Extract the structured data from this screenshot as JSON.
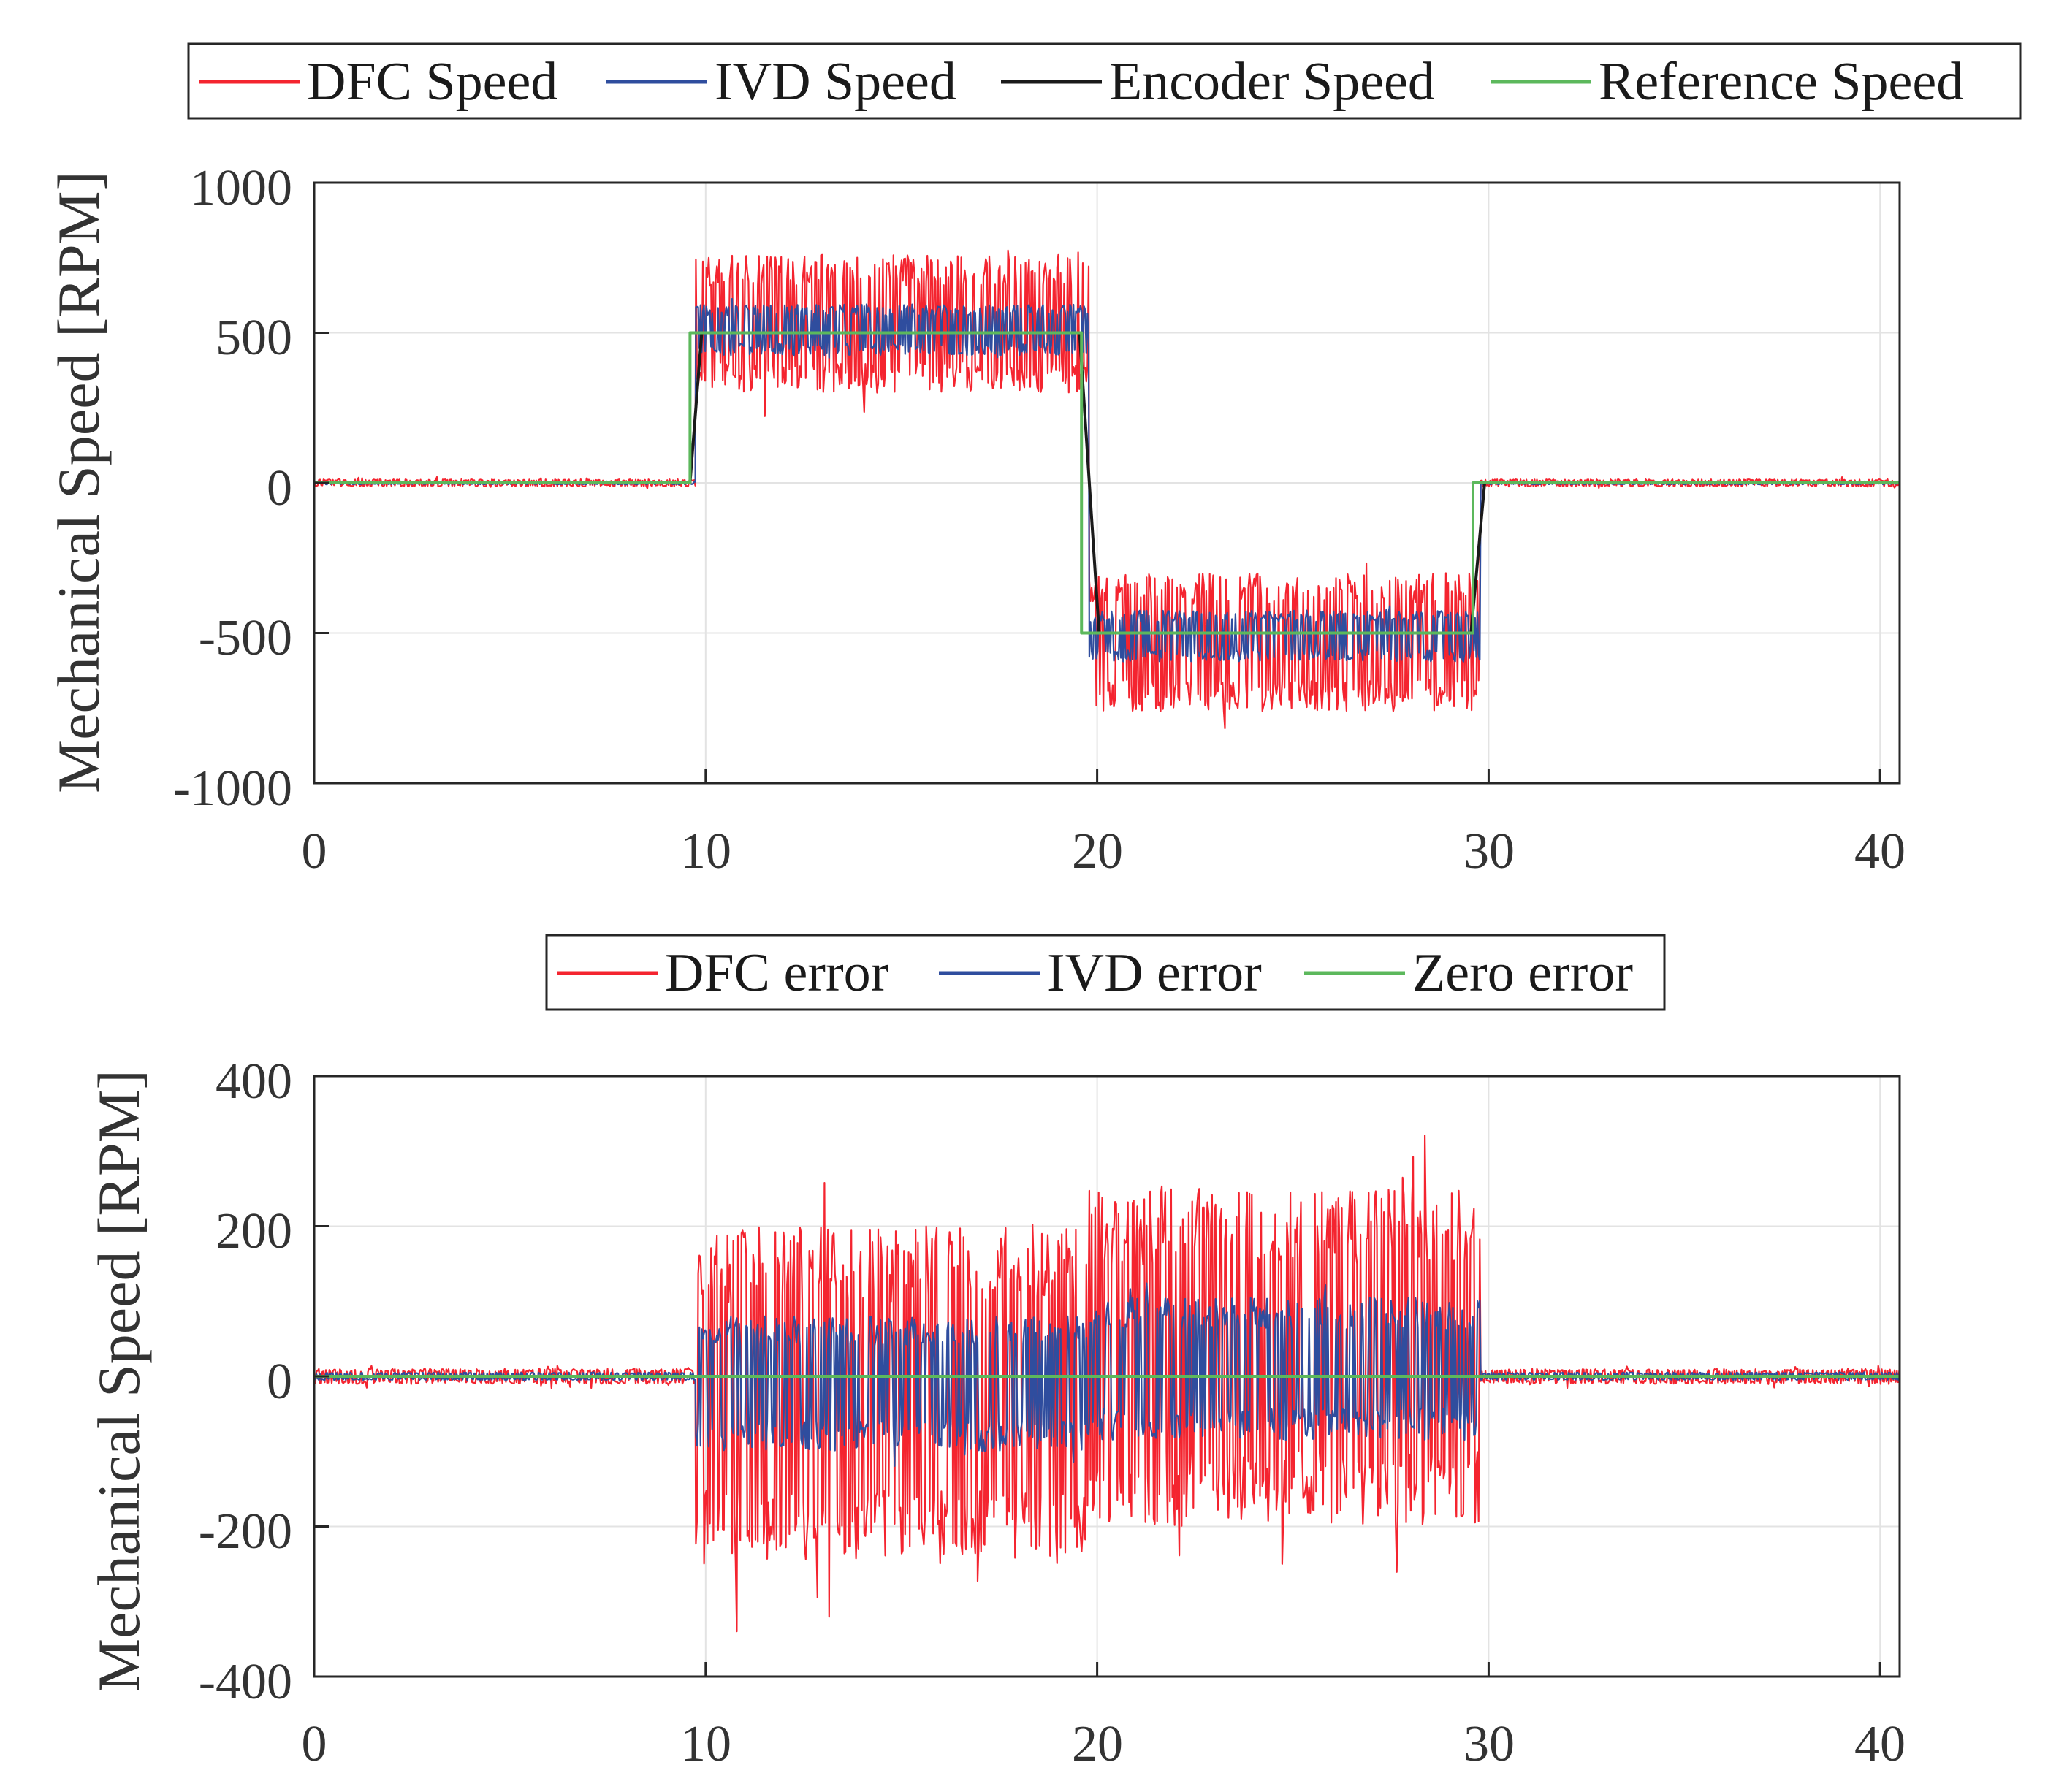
{
  "chart_data": [
    {
      "type": "line",
      "x_unit_note": "time (no axis label shown)",
      "ylabel": "Mechanical Speed [RPM]",
      "xlim": [
        0,
        40.5
      ],
      "ylim": [
        -1000,
        1000
      ],
      "xticks": [
        0,
        10,
        20,
        30,
        40
      ],
      "xtick_labels": [
        "0",
        "10",
        "20",
        "30",
        "40"
      ],
      "yticks": [
        -1000,
        -500,
        0,
        500,
        1000
      ],
      "ytick_labels": [
        "-1000",
        "-500",
        "0",
        "500",
        "1000"
      ],
      "grid": true,
      "legend_position": "top",
      "series": [
        {
          "name": "DFC Speed",
          "color": "#f4242f",
          "segments": [
            {
              "x0": 0,
              "x1": 9.75,
              "center": 0,
              "band": 12,
              "spike": 20
            },
            {
              "x0": 9.75,
              "x1": 19.8,
              "center": 530,
              "band": 230,
              "spike": 320
            },
            {
              "x0": 19.8,
              "x1": 29.8,
              "center": -530,
              "band": 230,
              "spike": 310
            },
            {
              "x0": 29.8,
              "x1": 40.5,
              "center": 0,
              "band": 12,
              "spike": 20
            }
          ]
        },
        {
          "name": "IVD Speed",
          "color": "#2f4d9e",
          "segments": [
            {
              "x0": 0,
              "x1": 9.75,
              "center": 0,
              "band": 5,
              "spike": 6
            },
            {
              "x0": 9.75,
              "x1": 19.8,
              "center": 510,
              "band": 85,
              "spike": 110
            },
            {
              "x0": 19.8,
              "x1": 29.8,
              "center": -510,
              "band": 85,
              "spike": 110
            },
            {
              "x0": 29.8,
              "x1": 40.5,
              "center": 0,
              "band": 5,
              "spike": 6
            }
          ]
        },
        {
          "name": "Encoder Speed",
          "color": "#1a1a1a",
          "x": [
            0,
            9.6,
            9.9,
            19.55,
            20.05,
            29.55,
            29.9,
            40.5
          ],
          "y": [
            0,
            0,
            500,
            500,
            -500,
            -500,
            0,
            0
          ]
        },
        {
          "name": "Reference Speed",
          "color": "#5cb85c",
          "x": [
            0,
            9.6,
            9.6,
            19.6,
            19.6,
            29.6,
            29.6,
            40.5
          ],
          "y": [
            0,
            0,
            500,
            500,
            -500,
            -500,
            0,
            0
          ]
        }
      ]
    },
    {
      "type": "line",
      "x_unit_note": "time (no axis label shown)",
      "ylabel": "Mechanical Speed [RPM]",
      "xlim": [
        0,
        40.5
      ],
      "ylim": [
        -400,
        400
      ],
      "xticks": [
        0,
        10,
        20,
        30,
        40
      ],
      "xtick_labels": [
        "0",
        "10",
        "20",
        "30",
        "40"
      ],
      "yticks": [
        -400,
        -200,
        0,
        200,
        400
      ],
      "ytick_labels": [
        "-400",
        "-200",
        "0",
        "200",
        "400"
      ],
      "grid": true,
      "legend_position": "top",
      "series": [
        {
          "name": "DFC error",
          "color": "#f4242f",
          "segments": [
            {
              "x0": 0,
              "x1": 9.75,
              "center": 0,
              "band": 10,
              "spike": 16
            },
            {
              "x0": 9.75,
              "x1": 19.8,
              "center": -25,
              "band": 225,
              "spike": 320
            },
            {
              "x0": 19.8,
              "x1": 29.8,
              "center": 25,
              "band": 225,
              "spike": 310
            },
            {
              "x0": 29.8,
              "x1": 40.5,
              "center": 0,
              "band": 10,
              "spike": 16
            }
          ]
        },
        {
          "name": "IVD error",
          "color": "#2f4d9e",
          "segments": [
            {
              "x0": 0,
              "x1": 9.75,
              "center": 0,
              "band": 5,
              "spike": 6
            },
            {
              "x0": 9.75,
              "x1": 19.8,
              "center": -10,
              "band": 90,
              "spike": 110
            },
            {
              "x0": 19.8,
              "x1": 29.8,
              "center": 10,
              "band": 95,
              "spike": 115
            },
            {
              "x0": 29.8,
              "x1": 40.5,
              "center": 0,
              "band": 5,
              "spike": 6
            }
          ]
        },
        {
          "name": "Zero error",
          "color": "#5cb85c",
          "x": [
            0,
            40.5
          ],
          "y": [
            0,
            0
          ]
        }
      ]
    }
  ]
}
